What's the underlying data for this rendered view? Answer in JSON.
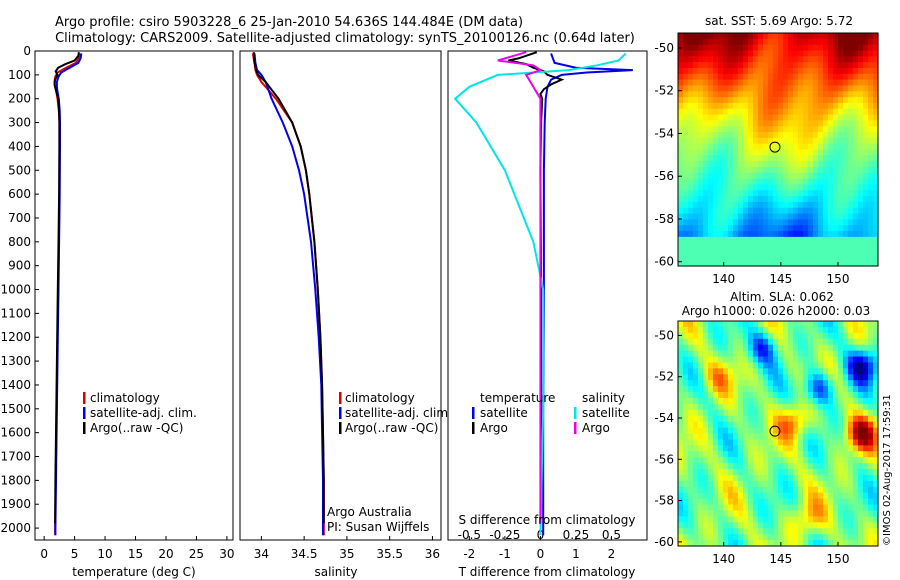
{
  "header": {
    "line1": "Argo profile: csiro 5903228_6 25-Jan-2010 54.636S 144.484E (DM data)",
    "line2": "Climatology: CARS2009. Satellite-adjusted climatology: synTS_20100126.nc (0.64d later)"
  },
  "colors": {
    "climatology": "#dd0000",
    "satellite": "#0000ee",
    "argo": "#000000",
    "salinity_satellite": "#00e5e5",
    "salinity_argo": "#ee00ee"
  },
  "chart_data": [
    {
      "type": "line",
      "xlabel": "temperature (deg C)",
      "ylim": [
        2050,
        0
      ],
      "xlim": [
        -1.5,
        31
      ],
      "xticks": [
        "0",
        "5",
        "10",
        "15",
        "20",
        "25",
        "30"
      ],
      "yticks": [
        "0",
        "100",
        "200",
        "300",
        "400",
        "500",
        "600",
        "700",
        "800",
        "900",
        "1000",
        "1100",
        "1200",
        "1300",
        "1400",
        "1500",
        "1600",
        "1700",
        "1800",
        "1900",
        "2000"
      ],
      "legend": [
        "climatology",
        "satellite-adj. clim.",
        "Argo(..raw -QC)"
      ],
      "series": [
        {
          "name": "climatology",
          "color": "#dd0000",
          "depth": [
            10,
            30,
            50,
            70,
            90,
            110,
            130,
            150,
            170,
            200,
            250,
            300,
            400,
            600,
            800,
            1000,
            1200,
            1400,
            1600,
            1800,
            2000,
            2030
          ],
          "values": [
            5.8,
            5.7,
            5.2,
            3.6,
            2.2,
            1.8,
            1.7,
            1.8,
            2.0,
            2.2,
            2.4,
            2.5,
            2.5,
            2.5,
            2.4,
            2.3,
            2.2,
            2.1,
            2.0,
            1.9,
            1.8,
            1.8
          ]
        },
        {
          "name": "satellite-adj. clim.",
          "color": "#0000ee",
          "depth": [
            10,
            30,
            50,
            70,
            90,
            110,
            130,
            150,
            170,
            200,
            250,
            300,
            400,
            600,
            800,
            1000,
            1200,
            1400,
            1600,
            1800,
            2000,
            2030
          ],
          "values": [
            6.1,
            6.0,
            5.6,
            4.2,
            2.8,
            2.3,
            2.1,
            2.1,
            2.2,
            2.4,
            2.55,
            2.6,
            2.6,
            2.55,
            2.45,
            2.35,
            2.25,
            2.15,
            2.05,
            1.95,
            1.85,
            1.85
          ]
        },
        {
          "name": "Argo(..raw -QC)",
          "color": "#000000",
          "depth": [
            5,
            20,
            40,
            55,
            70,
            85,
            100,
            120,
            140,
            160,
            180,
            200,
            250,
            300,
            400,
            600,
            800,
            1000,
            1200,
            1400,
            1600,
            1800,
            1980
          ],
          "values": [
            5.7,
            5.6,
            5.0,
            3.5,
            2.3,
            1.9,
            2.2,
            1.8,
            1.7,
            1.9,
            2.1,
            2.3,
            2.45,
            2.5,
            2.5,
            2.45,
            2.35,
            2.25,
            2.15,
            2.05,
            1.95,
            1.85,
            1.8
          ]
        }
      ]
    },
    {
      "type": "line",
      "xlabel": "salinity",
      "ylim": [
        2050,
        0
      ],
      "xlim": [
        33.75,
        36.1
      ],
      "xticks": [
        "34",
        "34.5",
        "35",
        "35.5",
        "36"
      ],
      "legend": [
        "climatology",
        "satellite-adj. clim.",
        "Argo(..raw -QC)"
      ],
      "annotation": [
        "Argo Australia",
        "PI: Susan Wijffels"
      ],
      "series": [
        {
          "name": "climatology",
          "color": "#dd0000",
          "depth": [
            10,
            50,
            80,
            100,
            130,
            200,
            300,
            400,
            500,
            600,
            800,
            1000,
            1200,
            1400,
            1600,
            1800,
            2000,
            2030
          ],
          "values": [
            33.9,
            33.92,
            33.93,
            33.95,
            34.0,
            34.17,
            34.36,
            34.46,
            34.52,
            34.56,
            34.62,
            34.66,
            34.69,
            34.71,
            34.72,
            34.73,
            34.73,
            34.73
          ]
        },
        {
          "name": "satellite-adj. clim.",
          "color": "#0000ee",
          "depth": [
            10,
            50,
            80,
            100,
            130,
            200,
            300,
            400,
            500,
            600,
            800,
            1000,
            1200,
            1400,
            1600,
            1800,
            2000,
            2030
          ],
          "values": [
            33.92,
            33.93,
            33.95,
            34.0,
            34.05,
            34.12,
            34.25,
            34.36,
            34.44,
            34.5,
            34.58,
            34.63,
            34.67,
            34.7,
            34.71,
            34.72,
            34.72,
            34.72
          ]
        },
        {
          "name": "Argo(..raw -QC)",
          "color": "#000000",
          "depth": [
            5,
            50,
            80,
            100,
            130,
            200,
            300,
            400,
            500,
            600,
            800,
            1000,
            1200,
            1400,
            1600,
            1800,
            1980
          ],
          "values": [
            33.91,
            33.92,
            33.94,
            33.96,
            34.05,
            34.2,
            34.36,
            34.46,
            34.52,
            34.56,
            34.62,
            34.66,
            34.69,
            34.71,
            34.72,
            34.73,
            34.73
          ]
        }
      ]
    },
    {
      "type": "line",
      "xlabel": "T difference from climatology",
      "xlabel_top": "S difference from climatology",
      "ylim": [
        2050,
        0
      ],
      "xlim": [
        -2.6,
        3.0
      ],
      "xticks": [
        "-2",
        "-1",
        "0",
        "1",
        "2"
      ],
      "xticks_s": [
        "-0.5",
        "-0.25",
        "0",
        "0.25",
        "0.5"
      ],
      "legend_titles": [
        "temperature",
        "salinity"
      ],
      "legend_left": [
        "satellite",
        "Argo"
      ],
      "legend_right": [
        "satellite",
        "Argo"
      ],
      "series": [
        {
          "name": "satellite",
          "group": "temperature",
          "color": "#0000ee",
          "depth": [
            10,
            30,
            50,
            70,
            80,
            90,
            100,
            120,
            150,
            200,
            300,
            500,
            1000,
            1500,
            2030
          ],
          "values": [
            0.3,
            0.35,
            0.4,
            1.0,
            2.6,
            1.3,
            0.6,
            0.3,
            0.2,
            0.15,
            0.12,
            0.1,
            0.1,
            0.08,
            0.08
          ]
        },
        {
          "name": "Argo",
          "group": "temperature",
          "color": "#000000",
          "depth": [
            5,
            30,
            40,
            55,
            70,
            85,
            100,
            120,
            140,
            160,
            180,
            200,
            300,
            500,
            1000,
            1500,
            1980
          ],
          "values": [
            -0.1,
            -0.6,
            -0.9,
            -0.4,
            -0.2,
            0.1,
            0.2,
            0.6,
            0.3,
            0.1,
            0.0,
            0.05,
            0.02,
            0.0,
            0.02,
            0.02,
            0.0
          ]
        },
        {
          "name": "satellite",
          "group": "salinity",
          "color": "#00e5e5",
          "depth": [
            10,
            40,
            60,
            80,
            100,
            150,
            200,
            300,
            500,
            800,
            1000,
            1500,
            2030
          ],
          "values": [
            0.6,
            0.55,
            0.4,
            0.2,
            -0.3,
            -0.5,
            -0.6,
            -0.45,
            -0.25,
            -0.05,
            0.02,
            0.02,
            0.0
          ]
        },
        {
          "name": "Argo",
          "group": "salinity",
          "color": "#ee00ee",
          "depth": [
            5,
            40,
            60,
            80,
            100,
            150,
            200,
            300,
            500,
            1000,
            1500,
            1980
          ],
          "values": [
            -0.1,
            -0.3,
            -0.05,
            0.0,
            -0.1,
            -0.05,
            0.0,
            0.0,
            0.0,
            0.0,
            0.0,
            0.0
          ]
        }
      ]
    },
    {
      "type": "heatmap",
      "title": "sat. SST: 5.69 Argo: 5.72",
      "xticks": [
        "140",
        "145",
        "150"
      ],
      "yticks": [
        "-50",
        "-52",
        "-54",
        "-56",
        "-58",
        "-60"
      ],
      "xlim": [
        136,
        153.5
      ],
      "ylim": [
        -60.2,
        -49.3
      ],
      "marker": {
        "lon": 144.484,
        "lat": -54.636
      }
    },
    {
      "type": "heatmap",
      "title": "Altim. SLA: 0.062",
      "subtitle": "Argo h1000: 0.026 h2000: 0.03",
      "xticks": [
        "140",
        "145",
        "150"
      ],
      "yticks": [
        "-50",
        "-52",
        "-54",
        "-56",
        "-58",
        "-60"
      ],
      "xlim": [
        136,
        153.5
      ],
      "ylim": [
        -60.2,
        -49.3
      ],
      "marker": {
        "lon": 144.484,
        "lat": -54.636
      }
    }
  ],
  "footer": {
    "stamp": "©IMOS 02-Aug-2017 17:59:31"
  }
}
